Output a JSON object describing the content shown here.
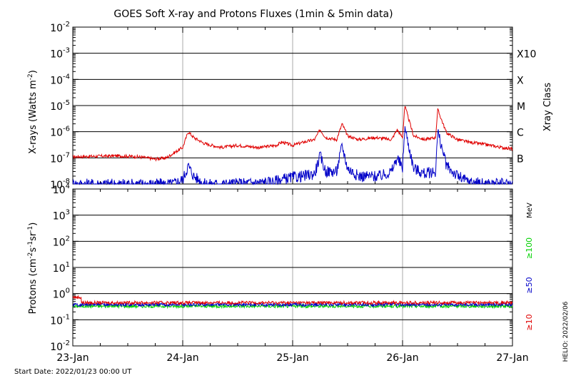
{
  "chart_data": [
    {
      "type": "line",
      "title": "GOES Soft X-ray and Protons Fluxes   (1min & 5min data)",
      "ylabel_base": "X-rays (Watts m",
      "ylabel_exp": "-2",
      "ylabel_tail": ")",
      "ylim": [
        1e-08,
        0.01
      ],
      "yscale": "log",
      "y_ticks": [
        {
          "base": "10",
          "exp": "-2"
        },
        {
          "base": "10",
          "exp": "-3"
        },
        {
          "base": "10",
          "exp": "-4"
        },
        {
          "base": "10",
          "exp": "-5"
        },
        {
          "base": "10",
          "exp": "-6"
        },
        {
          "base": "10",
          "exp": "-7"
        },
        {
          "base": "10",
          "exp": "-8"
        }
      ],
      "xray_class_label": "Xray Class",
      "xray_classes": [
        "X10",
        "X",
        "M",
        "C",
        "B"
      ],
      "xlim": [
        "2022-01-23",
        "2022-01-27"
      ],
      "series": [
        {
          "color": "#e00000",
          "x": [
            0,
            0.2,
            0.4,
            0.6,
            0.75,
            0.85,
            1.0,
            1.05,
            1.1,
            1.2,
            1.35,
            1.5,
            1.7,
            1.85,
            1.9,
            2.0,
            2.1,
            2.2,
            2.25,
            2.3,
            2.4,
            2.45,
            2.5,
            2.6,
            2.75,
            2.9,
            2.95,
            3.0,
            3.02,
            3.1,
            3.2,
            3.3,
            3.32,
            3.4,
            3.5,
            3.6,
            3.7,
            3.8,
            3.9,
            4.0
          ],
          "values": [
            1.1e-07,
            1.15e-07,
            1.2e-07,
            1.1e-07,
            9e-08,
            1e-07,
            2.5e-07,
            1e-06,
            6e-07,
            3.5e-07,
            2.5e-07,
            3e-07,
            2.5e-07,
            3e-07,
            4e-07,
            3e-07,
            4e-07,
            5e-07,
            1.2e-06,
            6e-07,
            5e-07,
            2e-06,
            7e-07,
            5e-07,
            6e-07,
            5e-07,
            1.2e-06,
            6e-07,
            1e-05,
            7e-07,
            5e-07,
            6e-07,
            7e-06,
            9e-07,
            5e-07,
            4e-07,
            3.5e-07,
            3e-07,
            2.5e-07,
            2.2e-07
          ]
        },
        {
          "color": "#0000c8",
          "x": [
            0,
            0.5,
            0.9,
            1.0,
            1.05,
            1.1,
            1.2,
            1.4,
            1.8,
            1.9,
            2.0,
            2.1,
            2.2,
            2.25,
            2.3,
            2.4,
            2.45,
            2.5,
            2.6,
            2.8,
            2.9,
            2.95,
            3.0,
            3.02,
            3.1,
            3.2,
            3.3,
            3.32,
            3.4,
            3.5,
            3.6,
            3.8,
            4.0
          ],
          "values": [
            1e-08,
            1e-08,
            1e-08,
            1.5e-08,
            5e-08,
            2e-08,
            1e-08,
            1e-08,
            1.2e-08,
            1.5e-08,
            1.8e-08,
            2e-08,
            2.5e-08,
            1.2e-07,
            3e-08,
            3e-08,
            3e-07,
            4e-08,
            2e-08,
            2e-08,
            3e-08,
            1e-07,
            4e-08,
            1.5e-06,
            4e-08,
            2.5e-08,
            3e-08,
            1e-06,
            5e-08,
            2e-08,
            1.2e-08,
            1e-08,
            1e-08
          ]
        }
      ]
    },
    {
      "type": "line",
      "ylabel_base": "Protons (cm",
      "ylabel_exp1": "-2",
      "ylabel_mid": "s",
      "ylabel_exp2": "-1",
      "ylabel_mid2": "sr",
      "ylabel_exp3": "-1",
      "ylabel_tail": ")",
      "ylim": [
        0.01,
        10000
      ],
      "yscale": "log",
      "y_ticks": [
        {
          "base": "10",
          "exp": "4"
        },
        {
          "base": "10",
          "exp": "3"
        },
        {
          "base": "10",
          "exp": "2"
        },
        {
          "base": "10",
          "exp": "1"
        },
        {
          "base": "10",
          "exp": "0"
        },
        {
          "base": "10",
          "exp": "-1"
        },
        {
          "base": "10",
          "exp": "-2"
        }
      ],
      "threshold_line": 10,
      "energy_unit": "MeV",
      "series": [
        {
          "name": "≥100",
          "color": "#00d200",
          "level": 0.33
        },
        {
          "name": "≥50",
          "color": "#0000c8",
          "level": 0.38
        },
        {
          "name": "≥10",
          "color": "#e00000",
          "level": 0.45
        }
      ]
    }
  ],
  "x_tick_labels": [
    "23-Jan",
    "24-Jan",
    "25-Jan",
    "26-Jan",
    "27-Jan"
  ],
  "start_date": "Start Date: 2022/01/23 00:00 UT",
  "credit": "HELIO: 2022/02/06",
  "colors": {
    "red": "#e00000",
    "blue": "#0000c8",
    "green": "#00d200",
    "grid": "#aaaaaa"
  }
}
